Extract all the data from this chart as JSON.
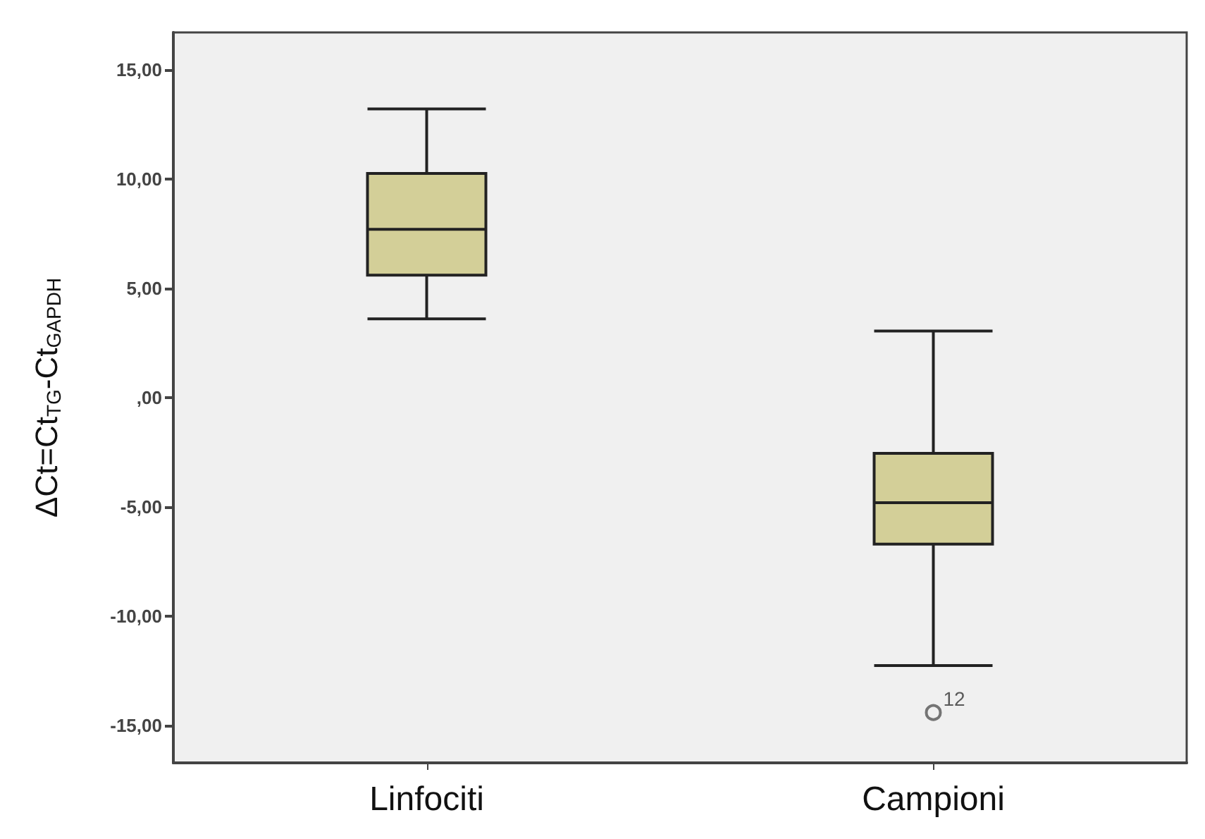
{
  "chart_data": {
    "type": "box",
    "ylabel": "ΔCt=Ct$_{TG}$-Ct$_{GAPDH}$",
    "categories": [
      "Linfociti",
      "Campioni"
    ],
    "color": "#d3cf98",
    "boxes": [
      {
        "low": 3.6,
        "q1": 5.6,
        "median": 7.7,
        "q3": 10.25,
        "high": 13.2
      },
      {
        "low": -12.25,
        "q1": -6.7,
        "median": -4.8,
        "q3": -2.55,
        "high": 3.05,
        "outliers": [
          -14.4
        ]
      }
    ],
    "marker": "circle",
    "grid": false,
    "ylim": [
      -16.7,
      16.7
    ],
    "yticks": [
      {
        "value": -15,
        "label": "-15,00"
      },
      {
        "value": -10,
        "label": "-10,00"
      },
      {
        "value": -5,
        "label": "-5,00"
      },
      {
        "value": 0,
        "label": ",00"
      },
      {
        "value": 5,
        "label": "5,00"
      },
      {
        "value": 10,
        "label": "10,00"
      },
      {
        "value": 15,
        "label": "15,00"
      }
    ],
    "annotations": [
      "12"
    ]
  }
}
